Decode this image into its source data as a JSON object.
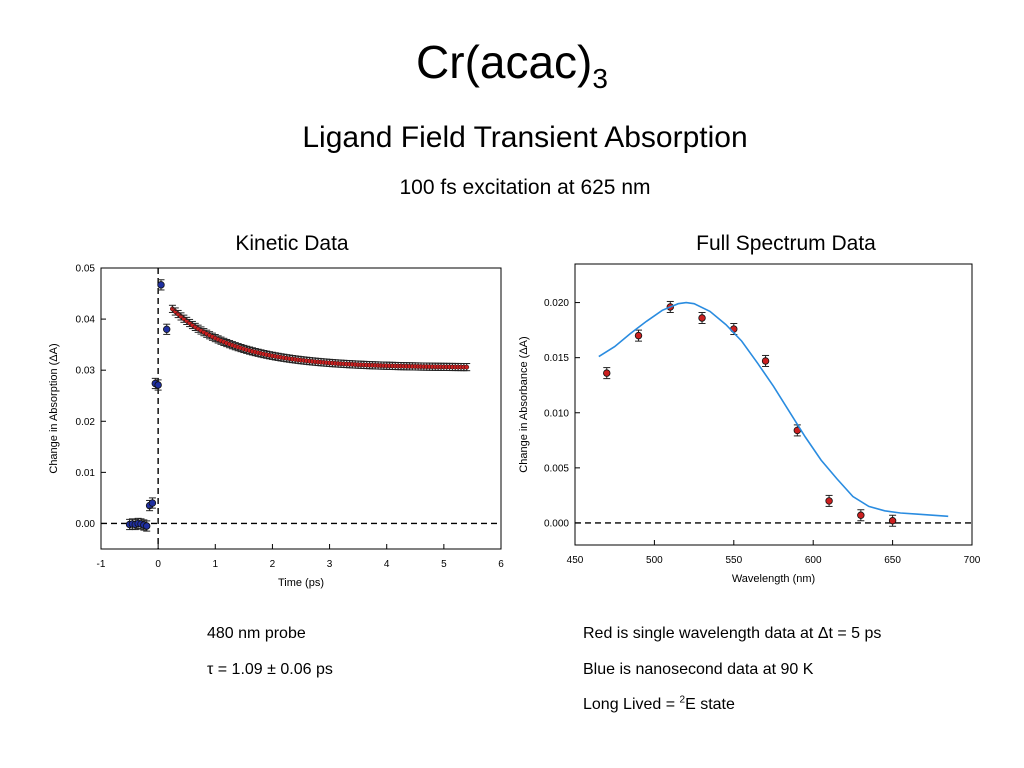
{
  "slide": {
    "title_main": "Cr(acac)",
    "title_sub": "3",
    "subtitle": "Ligand Field Transient Absorption",
    "excitation": "100 fs excitation at 625 nm"
  },
  "kinetic": {
    "panel_title": "Kinetic Data",
    "notes": {
      "probe": "480 nm probe",
      "tau": "τ = 1.09 ± 0.06 ps"
    }
  },
  "spectrum": {
    "panel_title": "Full Spectrum Data",
    "notes": {
      "red": "Red is single wavelength data at Δt = 5 ps",
      "blue": "Blue is nanosecond data at 90 K",
      "long_lived_prefix": "Long Lived = ",
      "long_lived_sup": "2",
      "long_lived_suffix": "E state"
    }
  },
  "chart_data": [
    {
      "type": "scatter",
      "xlabel": "Time (ps)",
      "ylabel": "Change in Absorption (ΔA)",
      "xlim": [
        -1,
        6
      ],
      "ylim": [
        -0.005,
        0.05
      ],
      "xticks": [
        -1,
        0,
        1,
        2,
        3,
        4,
        5,
        6
      ],
      "yticks": [
        0.0,
        0.01,
        0.02,
        0.03,
        0.04,
        0.05
      ],
      "xtick_labels": [
        "-1",
        "0",
        "1",
        "2",
        "3",
        "4",
        "5",
        "6"
      ],
      "ytick_labels": [
        "0.00",
        "0.01",
        "0.02",
        "0.03",
        "0.04",
        "0.05"
      ],
      "grid": false,
      "reference_lines": [
        {
          "axis": "y",
          "value": 0,
          "style": "dashed"
        },
        {
          "axis": "x",
          "value": 0,
          "style": "dashed"
        }
      ],
      "series": [
        {
          "color": "#1f2fa0",
          "x": [
            -0.5,
            -0.45,
            -0.4,
            -0.35,
            -0.3,
            -0.25,
            -0.2,
            -0.15,
            -0.1,
            -0.05,
            0.0,
            0.05,
            0.15
          ],
          "y": [
            -0.0002,
            -0.0001,
            -0.0002,
            0.0,
            -0.0001,
            -0.0003,
            -0.0005,
            0.0035,
            0.004,
            0.0274,
            0.0271,
            0.0467,
            0.038
          ],
          "err": 0.001
        },
        {
          "color": "#cc1f1f",
          "fit": "exponential",
          "fit_params": {
            "A": 0.0115,
            "tau": 1.09,
            "c": 0.0305,
            "t0": 0.25
          },
          "x_start": 0.25,
          "x_end": 5.4,
          "step": 0.05,
          "err": 0.0007
        }
      ]
    },
    {
      "type": "scatter",
      "xlabel": "Wavelength (nm)",
      "ylabel": "Change in Absorbance (ΔA)",
      "xlim": [
        450,
        700
      ],
      "ylim": [
        -0.002,
        0.0235
      ],
      "xticks": [
        450,
        500,
        550,
        600,
        650,
        700
      ],
      "yticks": [
        0.0,
        0.005,
        0.01,
        0.015,
        0.02
      ],
      "xtick_labels": [
        "450",
        "500",
        "550",
        "600",
        "650",
        "700"
      ],
      "ytick_labels": [
        "0.000",
        "0.005",
        "0.010",
        "0.015",
        "0.020"
      ],
      "grid": false,
      "reference_lines": [
        {
          "axis": "y",
          "value": 0,
          "style": "dashed"
        }
      ],
      "series": [
        {
          "color": "#cc1f1f",
          "x": [
            470,
            490,
            510,
            530,
            550,
            570,
            590,
            610,
            630,
            650
          ],
          "y": [
            0.0136,
            0.017,
            0.0196,
            0.0186,
            0.0176,
            0.0147,
            0.0084,
            0.002,
            0.0007,
            0.0002
          ],
          "err": 0.0005
        },
        {
          "color": "#2a8ce0",
          "line": true,
          "x": [
            465,
            475,
            485,
            495,
            505,
            515,
            520,
            525,
            535,
            545,
            555,
            565,
            575,
            585,
            595,
            605,
            615,
            625,
            635,
            645,
            655,
            665,
            675,
            685
          ],
          "y": [
            0.0151,
            0.016,
            0.0172,
            0.0183,
            0.0193,
            0.0199,
            0.02,
            0.0199,
            0.0192,
            0.018,
            0.0165,
            0.0145,
            0.0124,
            0.0101,
            0.0078,
            0.0057,
            0.004,
            0.0024,
            0.0015,
            0.0011,
            0.0009,
            0.0008,
            0.0007,
            0.0006
          ]
        }
      ]
    }
  ]
}
